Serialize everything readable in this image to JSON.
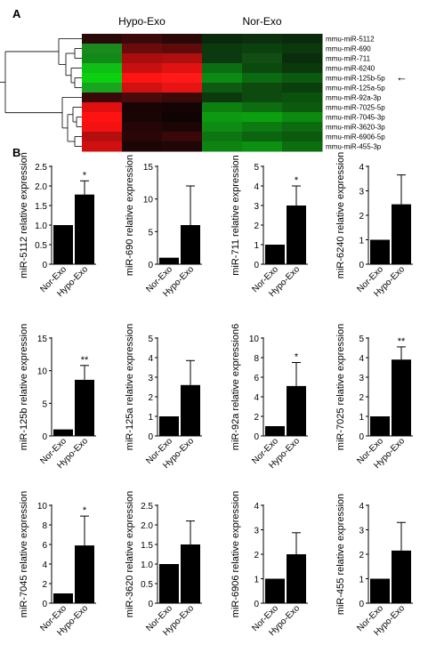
{
  "panels": {
    "a": "A",
    "b": "B"
  },
  "heatmap": {
    "group_labels": [
      "Hypo-Exo",
      "Nor-Exo"
    ],
    "rows": [
      "mmu-miR-5112",
      "mmu-miR-690",
      "mmu-miR-711",
      "mmu-miR-6240",
      "mmu-miR-125b-5p",
      "mmu-miR-125a-5p",
      "mmu-miR-92a-3p",
      "mmu-miR-7025-5p",
      "mmu-miR-7045-3p",
      "mmu-miR-3620-3p",
      "mmu-miR-6906-5p",
      "mmu-miR-455-3p"
    ],
    "colors": [
      [
        "#2a0a08",
        "#3a0a0a",
        "#2a0808",
        "#0a2a0c",
        "#0c300e",
        "#0a2a0c"
      ],
      [
        "#1a8a1e",
        "#6a0c0c",
        "#600b0b",
        "#0a3a0e",
        "#0c420f",
        "#0b380d"
      ],
      [
        "#128a18",
        "#a80e0e",
        "#b00f0f",
        "#0c3a10",
        "#124e14",
        "#0a2e0c"
      ],
      [
        "#0fbf15",
        "#c81010",
        "#e01212",
        "#0c6e12",
        "#0b4a0e",
        "#0a3a0c"
      ],
      [
        "#0ad010",
        "#ff1414",
        "#ff1a1a",
        "#0d8a12",
        "#0c6a10",
        "#0b5a0e"
      ],
      [
        "#18a41e",
        "#d01111",
        "#e81313",
        "#0d5a10",
        "#0c4a0e",
        "#0a3e0c"
      ],
      [
        "#3a0808",
        "#4a0a0a",
        "#3c0909",
        "#0c3a0e",
        "#0d4a10",
        "#0c520f"
      ],
      [
        "#e01010",
        "#180404",
        "#140404",
        "#0d8010",
        "#0c6e10",
        "#0b5a0e"
      ],
      [
        "#ff1212",
        "#1a0505",
        "#100303",
        "#0d9a12",
        "#0ca011",
        "#0c8a10"
      ],
      [
        "#f41111",
        "#240606",
        "#1c0505",
        "#0e8c12",
        "#0c7a10",
        "#0c6a10"
      ],
      [
        "#b40e0e",
        "#2a0606",
        "#3a0808",
        "#0d7612",
        "#0c6410",
        "#0b5a0e"
      ],
      [
        "#d01010",
        "#1c0505",
        "#200606",
        "#0d8412",
        "#0c9011",
        "#0b6e0f"
      ]
    ],
    "highlight_row": "mmu-miR-125b-5p",
    "highlight_mark": "←"
  },
  "chart_data": [
    {
      "type": "bar",
      "ylabel": "miR-5112 relative expression",
      "categories": [
        "Nor-Exo",
        "Hypo-Exo"
      ],
      "values": [
        1.0,
        1.78
      ],
      "errors": [
        0,
        0.35
      ],
      "ylim": [
        0,
        2.5
      ],
      "yticks": [
        "0",
        "0.5",
        "1.0",
        "1.5",
        "2.0",
        "2.5"
      ],
      "significance": "*"
    },
    {
      "type": "bar",
      "ylabel": "miR-690 relative expression",
      "categories": [
        "Nor-Exo",
        "Hypo-Exo"
      ],
      "values": [
        1.0,
        6.0
      ],
      "errors": [
        0,
        6.0
      ],
      "ylim": [
        0,
        15
      ],
      "yticks": [
        "0",
        "5",
        "10",
        "15"
      ],
      "significance": ""
    },
    {
      "type": "bar",
      "ylabel": "miR-711 relative expression",
      "categories": [
        "Nor-Exo",
        "Hypo-Exo"
      ],
      "values": [
        1.0,
        3.0
      ],
      "errors": [
        0,
        1.0
      ],
      "ylim": [
        0,
        5
      ],
      "yticks": [
        "0",
        "1",
        "2",
        "3",
        "4",
        "5"
      ],
      "significance": "*"
    },
    {
      "type": "bar",
      "ylabel": "miR-6240 relative expression",
      "categories": [
        "Nor-Exo",
        "Hypo-Exo"
      ],
      "values": [
        1.0,
        2.45
      ],
      "errors": [
        0,
        1.2
      ],
      "ylim": [
        0,
        4
      ],
      "yticks": [
        "0",
        "1",
        "2",
        "3",
        "4"
      ],
      "significance": ""
    },
    {
      "type": "bar",
      "ylabel": "miR-125b relative expression",
      "categories": [
        "Nor-Exo",
        "Hypo-Exo"
      ],
      "values": [
        1.0,
        8.6
      ],
      "errors": [
        0,
        2.2
      ],
      "ylim": [
        0,
        15
      ],
      "yticks": [
        "0",
        "5",
        "10",
        "15"
      ],
      "significance": "**"
    },
    {
      "type": "bar",
      "ylabel": "miR-125a relative expression",
      "categories": [
        "Nor-Exo",
        "Hypo-Exo"
      ],
      "values": [
        1.0,
        2.6
      ],
      "errors": [
        0,
        1.25
      ],
      "ylim": [
        0,
        5
      ],
      "yticks": [
        "0",
        "1",
        "2",
        "3",
        "4",
        "5"
      ],
      "significance": ""
    },
    {
      "type": "bar",
      "ylabel": "miR-92a relative expression6",
      "categories": [
        "Nor-Exo",
        "Hypo-Exo"
      ],
      "values": [
        1.0,
        5.1
      ],
      "errors": [
        0,
        2.4
      ],
      "ylim": [
        0,
        10
      ],
      "yticks": [
        "0",
        "2",
        "4",
        "6",
        "8",
        "10"
      ],
      "significance": "*"
    },
    {
      "type": "bar",
      "ylabel": "miR-7025 relative expression",
      "categories": [
        "Nor-Exo",
        "Hypo-Exo"
      ],
      "values": [
        1.0,
        3.9
      ],
      "errors": [
        0,
        0.65
      ],
      "ylim": [
        0,
        5
      ],
      "yticks": [
        "0",
        "1",
        "2",
        "3",
        "4",
        "5"
      ],
      "significance": "**"
    },
    {
      "type": "bar",
      "ylabel": "miR-7045 relative expression",
      "categories": [
        "Nor-Exo",
        "Hypo-Exo"
      ],
      "values": [
        1.0,
        5.9
      ],
      "errors": [
        0,
        3.0
      ],
      "ylim": [
        0,
        10
      ],
      "yticks": [
        "0",
        "2",
        "4",
        "6",
        "8",
        "10"
      ],
      "significance": "*"
    },
    {
      "type": "bar",
      "ylabel": "miR-3620 relative expression",
      "categories": [
        "Nor-Exo",
        "Hypo-Exo"
      ],
      "values": [
        1.0,
        1.5
      ],
      "errors": [
        0,
        0.6
      ],
      "ylim": [
        0,
        2.5
      ],
      "yticks": [
        "0",
        "0.5",
        "1.0",
        "1.5",
        "2.0",
        "2.5"
      ],
      "significance": ""
    },
    {
      "type": "bar",
      "ylabel": "miR-6906 relative expression",
      "categories": [
        "Nor-Exo",
        "Hypo-Exo"
      ],
      "values": [
        1.0,
        2.0
      ],
      "errors": [
        0,
        0.88
      ],
      "ylim": [
        0,
        4
      ],
      "yticks": [
        "0",
        "1",
        "2",
        "3",
        "4"
      ],
      "significance": ""
    },
    {
      "type": "bar",
      "ylabel": "miR-455 relative expression",
      "categories": [
        "Nor-Exo",
        "Hypo-Exo"
      ],
      "values": [
        1.0,
        2.15
      ],
      "errors": [
        0,
        1.15
      ],
      "ylim": [
        0,
        4
      ],
      "yticks": [
        "0",
        "1",
        "2",
        "3",
        "4"
      ],
      "significance": ""
    }
  ]
}
